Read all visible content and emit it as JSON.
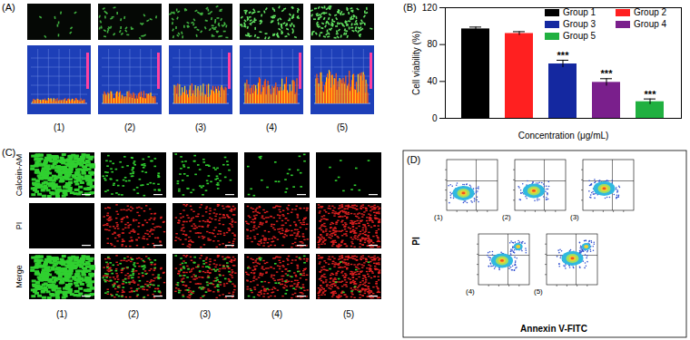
{
  "figure": {
    "A": {
      "label": "(A)",
      "columns": [
        "(1)",
        "(2)",
        "(3)",
        "(4)",
        "(5)"
      ]
    },
    "B": {
      "label": "(B)"
    },
    "C": {
      "label": "(C)",
      "rows": [
        "Calcein-AM",
        "PI",
        "Merge"
      ],
      "columns": [
        "(1)",
        "(2)",
        "(3)",
        "(4)",
        "(5)"
      ]
    },
    "D": {
      "label": "(D)",
      "y_label": "PI",
      "x_label": "Annexin V-FITC",
      "plots": [
        "(1)",
        "(2)",
        "(3)",
        "(4)",
        "(5)"
      ]
    }
  },
  "chart_data": {
    "type": "bar",
    "categories": [
      "Group 1",
      "Group 2",
      "Group 3",
      "Group 4",
      "Group 5"
    ],
    "values": [
      97,
      92,
      59,
      39,
      18
    ],
    "errors": [
      2,
      2,
      4,
      4,
      3
    ],
    "significance": [
      null,
      null,
      "***",
      "***",
      "***"
    ],
    "colors": [
      "#000000",
      "#ff2020",
      "#1428a0",
      "#7a1f8c",
      "#20b040"
    ],
    "y_label": "Cell viability (%)",
    "x_label": "Concentration (μg/mL)",
    "ylim": [
      0,
      120
    ],
    "yticks": [
      0,
      40,
      80,
      120
    ],
    "grid": false,
    "legend": "top-right",
    "tick_labels": "y"
  }
}
